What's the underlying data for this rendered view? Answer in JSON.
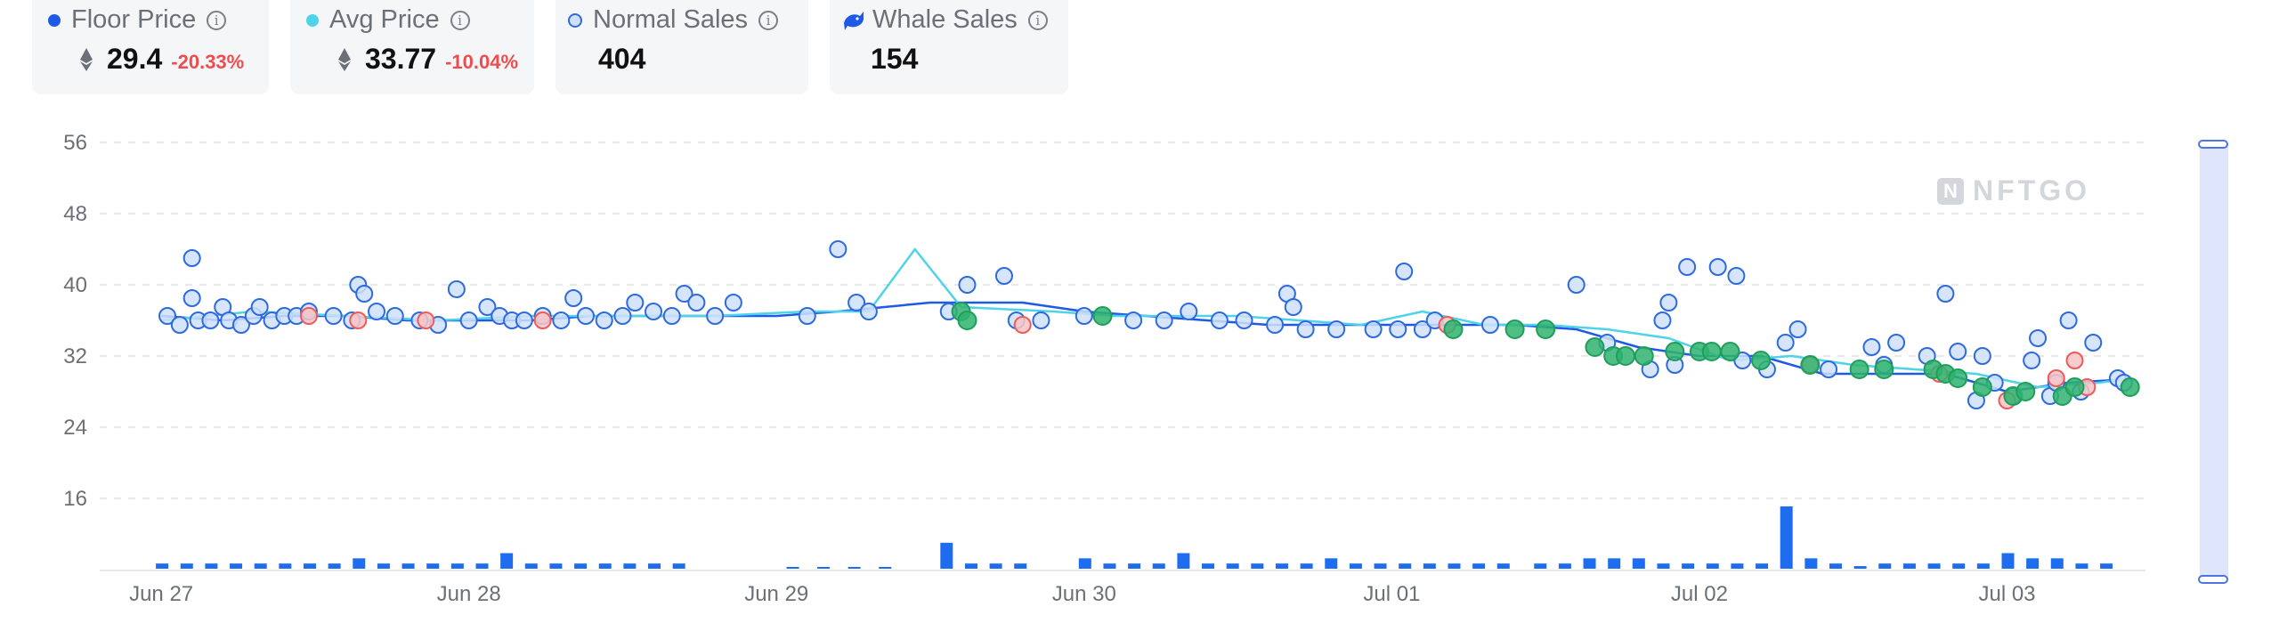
{
  "stats": {
    "floor": {
      "label": "Floor Price",
      "value": "29.4",
      "change": "-20.33%",
      "color": "#1e5ae6"
    },
    "avg": {
      "label": "Avg Price",
      "value": "33.77",
      "change": "-10.04%",
      "color": "#4fd3e8"
    },
    "normal": {
      "label": "Normal Sales",
      "value": "404"
    },
    "whale": {
      "label": "Whale Sales",
      "value": "154",
      "icon": "whale-icon"
    }
  },
  "watermark": {
    "text": "NFTGO",
    "logo": "N"
  },
  "chart_data": {
    "type": "scatter",
    "y_ticks": [
      16,
      24,
      32,
      40,
      48,
      56
    ],
    "ylim": [
      8,
      58
    ],
    "x_labels": [
      "Jun 27",
      "Jun 28",
      "Jun 29",
      "Jun 30",
      "Jul 01",
      "Jul 02",
      "Jul 03"
    ],
    "xlim": [
      -0.2,
      6.45
    ],
    "grid": true,
    "colors": {
      "normal": "#2f6bdc",
      "whale": "#1e9e5a",
      "sold_high": "#ef5b5b",
      "floor": "#1e5ae6",
      "avg": "#4fd3e8",
      "volume": "#1e6df0"
    },
    "series": [
      {
        "name": "Floor Price",
        "x": [
          0.0,
          0.2,
          0.4,
          0.6,
          0.8,
          1.0,
          1.2,
          1.4,
          1.6,
          1.8,
          2.0,
          2.2,
          2.5,
          2.8,
          3.0,
          3.2,
          3.4,
          3.6,
          3.8,
          4.0,
          4.2,
          4.4,
          4.6,
          4.8,
          5.0,
          5.2,
          5.4,
          5.6,
          5.8,
          6.0,
          6.2,
          6.4
        ],
        "y": [
          36.5,
          36.0,
          36.5,
          36.5,
          36.0,
          36.0,
          36.0,
          36.5,
          36.5,
          36.5,
          36.5,
          37.0,
          38.0,
          38.0,
          37.0,
          36.5,
          36.0,
          35.5,
          35.5,
          35.5,
          35.5,
          35.5,
          35.0,
          33.0,
          32.0,
          32.0,
          30.0,
          30.0,
          30.0,
          28.0,
          29.0,
          29.4
        ]
      },
      {
        "name": "Avg Price",
        "x": [
          0.0,
          0.3,
          0.6,
          0.9,
          1.2,
          1.5,
          1.8,
          2.1,
          2.3,
          2.45,
          2.6,
          2.9,
          3.1,
          3.3,
          3.5,
          3.7,
          3.9,
          4.1,
          4.3,
          4.5,
          4.7,
          4.9,
          5.1,
          5.3,
          5.5,
          5.7,
          5.9,
          6.1,
          6.3,
          6.4
        ],
        "y": [
          36.0,
          37.0,
          36.5,
          36.0,
          36.5,
          36.5,
          36.5,
          37.0,
          37.0,
          44.0,
          37.5,
          37.0,
          36.5,
          36.5,
          36.5,
          36.0,
          35.5,
          37.0,
          35.5,
          35.5,
          35.0,
          34.0,
          31.5,
          32.0,
          31.0,
          30.5,
          30.0,
          28.5,
          29.0,
          29.5
        ]
      }
    ],
    "normal_sales": [
      [
        0.02,
        36.5
      ],
      [
        0.06,
        35.5
      ],
      [
        0.1,
        43.0
      ],
      [
        0.1,
        38.5
      ],
      [
        0.12,
        36.0
      ],
      [
        0.16,
        36.0
      ],
      [
        0.2,
        37.5
      ],
      [
        0.22,
        36.0
      ],
      [
        0.26,
        35.5
      ],
      [
        0.3,
        36.5
      ],
      [
        0.32,
        37.5
      ],
      [
        0.36,
        36.0
      ],
      [
        0.4,
        36.5
      ],
      [
        0.44,
        36.5
      ],
      [
        0.48,
        37.0
      ],
      [
        0.56,
        36.5
      ],
      [
        0.62,
        36.0
      ],
      [
        0.64,
        40.0
      ],
      [
        0.66,
        39.0
      ],
      [
        0.7,
        37.0
      ],
      [
        0.76,
        36.5
      ],
      [
        0.84,
        36.0
      ],
      [
        0.9,
        35.5
      ],
      [
        0.96,
        39.5
      ],
      [
        1.0,
        36.0
      ],
      [
        1.06,
        37.5
      ],
      [
        1.1,
        36.5
      ],
      [
        1.14,
        36.0
      ],
      [
        1.18,
        36.0
      ],
      [
        1.24,
        36.5
      ],
      [
        1.3,
        36.0
      ],
      [
        1.34,
        38.5
      ],
      [
        1.38,
        36.5
      ],
      [
        1.44,
        36.0
      ],
      [
        1.5,
        36.5
      ],
      [
        1.54,
        38.0
      ],
      [
        1.6,
        37.0
      ],
      [
        1.66,
        36.5
      ],
      [
        1.7,
        39.0
      ],
      [
        1.74,
        38.0
      ],
      [
        1.8,
        36.5
      ],
      [
        1.86,
        38.0
      ],
      [
        2.1,
        36.5
      ],
      [
        2.2,
        44.0
      ],
      [
        2.26,
        38.0
      ],
      [
        2.3,
        37.0
      ],
      [
        2.56,
        37.0
      ],
      [
        2.62,
        40.0
      ],
      [
        2.74,
        41.0
      ],
      [
        2.78,
        36.0
      ],
      [
        2.86,
        36.0
      ],
      [
        3.0,
        36.5
      ],
      [
        3.16,
        36.0
      ],
      [
        3.26,
        36.0
      ],
      [
        3.34,
        37.0
      ],
      [
        3.44,
        36.0
      ],
      [
        3.52,
        36.0
      ],
      [
        3.62,
        35.5
      ],
      [
        3.66,
        39.0
      ],
      [
        3.68,
        37.5
      ],
      [
        3.72,
        35.0
      ],
      [
        3.82,
        35.0
      ],
      [
        3.94,
        35.0
      ],
      [
        4.02,
        35.0
      ],
      [
        4.04,
        41.5
      ],
      [
        4.1,
        35.0
      ],
      [
        4.14,
        36.0
      ],
      [
        4.32,
        35.5
      ],
      [
        4.6,
        40.0
      ],
      [
        4.7,
        33.5
      ],
      [
        4.84,
        30.5
      ],
      [
        4.88,
        36.0
      ],
      [
        4.9,
        38.0
      ],
      [
        4.92,
        31.0
      ],
      [
        4.96,
        42.0
      ],
      [
        5.06,
        42.0
      ],
      [
        5.12,
        41.0
      ],
      [
        5.14,
        31.5
      ],
      [
        5.22,
        30.5
      ],
      [
        5.28,
        33.5
      ],
      [
        5.32,
        35.0
      ],
      [
        5.36,
        31.0
      ],
      [
        5.42,
        30.5
      ],
      [
        5.56,
        33.0
      ],
      [
        5.6,
        31.0
      ],
      [
        5.64,
        33.5
      ],
      [
        5.74,
        32.0
      ],
      [
        5.8,
        39.0
      ],
      [
        5.84,
        32.5
      ],
      [
        5.9,
        27.0
      ],
      [
        5.92,
        32.0
      ],
      [
        5.96,
        29.0
      ],
      [
        6.02,
        27.5
      ],
      [
        6.08,
        31.5
      ],
      [
        6.1,
        34.0
      ],
      [
        6.14,
        27.5
      ],
      [
        6.16,
        29.0
      ],
      [
        6.2,
        36.0
      ],
      [
        6.24,
        28.0
      ],
      [
        6.28,
        33.5
      ],
      [
        6.36,
        29.5
      ],
      [
        6.38,
        29.0
      ]
    ],
    "whale_sales": [
      [
        2.6,
        37.0
      ],
      [
        2.62,
        36.0
      ],
      [
        3.06,
        36.5
      ],
      [
        4.2,
        35.0
      ],
      [
        4.4,
        35.0
      ],
      [
        4.5,
        35.0
      ],
      [
        4.66,
        33.0
      ],
      [
        4.72,
        32.0
      ],
      [
        4.76,
        32.0
      ],
      [
        4.82,
        32.0
      ],
      [
        4.92,
        32.5
      ],
      [
        5.0,
        32.5
      ],
      [
        5.04,
        32.5
      ],
      [
        5.1,
        32.5
      ],
      [
        5.2,
        31.5
      ],
      [
        5.36,
        31.0
      ],
      [
        5.52,
        30.5
      ],
      [
        5.6,
        30.5
      ],
      [
        5.76,
        30.5
      ],
      [
        5.8,
        30.0
      ],
      [
        5.84,
        29.5
      ],
      [
        5.92,
        28.5
      ],
      [
        6.02,
        27.5
      ],
      [
        6.06,
        28.0
      ],
      [
        6.18,
        27.5
      ],
      [
        6.22,
        28.5
      ],
      [
        6.4,
        28.5
      ]
    ],
    "high_sales": [
      [
        0.48,
        36.5
      ],
      [
        0.64,
        36.0
      ],
      [
        0.86,
        36.0
      ],
      [
        1.24,
        36.0
      ],
      [
        2.8,
        35.5
      ],
      [
        4.18,
        35.5
      ],
      [
        5.36,
        31.0
      ],
      [
        5.78,
        30.0
      ],
      [
        6.0,
        27.0
      ],
      [
        6.16,
        29.5
      ],
      [
        6.22,
        31.5
      ],
      [
        6.26,
        28.5
      ]
    ],
    "volume": {
      "x": [
        0.0,
        0.08,
        0.16,
        0.24,
        0.32,
        0.4,
        0.48,
        0.56,
        0.64,
        0.72,
        0.8,
        0.88,
        0.96,
        1.04,
        1.12,
        1.2,
        1.28,
        1.36,
        1.44,
        1.52,
        1.6,
        1.68,
        2.05,
        2.15,
        2.25,
        2.35,
        2.55,
        2.63,
        2.71,
        2.79,
        3.0,
        3.08,
        3.16,
        3.24,
        3.32,
        3.4,
        3.48,
        3.56,
        3.64,
        3.72,
        3.8,
        3.88,
        3.96,
        4.04,
        4.12,
        4.2,
        4.28,
        4.36,
        4.48,
        4.56,
        4.64,
        4.72,
        4.8,
        4.88,
        4.96,
        5.04,
        5.12,
        5.2,
        5.28,
        5.36,
        5.44,
        5.52,
        5.6,
        5.68,
        5.76,
        5.84,
        5.92,
        6.0,
        6.08,
        6.16,
        6.24,
        6.32
      ],
      "values": [
        1,
        1,
        1,
        1,
        1,
        1,
        1,
        1,
        2,
        1,
        1,
        1,
        1,
        1,
        3,
        1,
        1,
        1,
        1,
        1,
        1,
        1,
        0.3,
        0.3,
        0.3,
        0.3,
        5,
        1,
        1,
        1,
        2,
        1,
        1,
        1,
        3,
        1,
        1,
        1,
        1,
        1,
        2,
        1,
        1,
        1,
        1,
        1,
        1,
        1,
        1,
        1,
        2,
        2,
        2,
        1,
        1,
        1,
        1,
        1,
        12,
        2,
        1,
        0.5,
        1,
        1,
        1,
        1,
        1,
        3,
        2,
        2,
        1,
        1
      ]
    }
  }
}
